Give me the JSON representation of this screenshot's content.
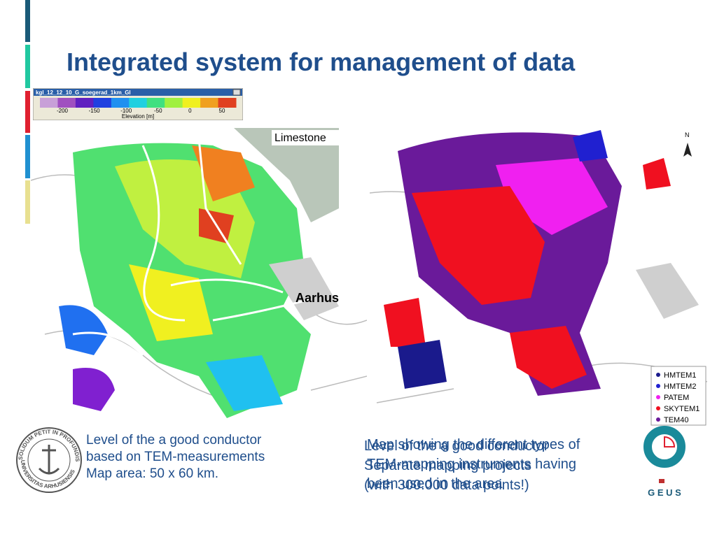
{
  "title": "Integrated system for management of data",
  "colorbar": {
    "window_title": "kgl_12_12_10_G_soegerad_1km_GI",
    "ticks": [
      "-200",
      "-150",
      "-100",
      "-50",
      "0",
      "50"
    ],
    "axis_label": "Elevation [m]",
    "colors": [
      "#c8a0d8",
      "#a050c0",
      "#6020c0",
      "#2040e0",
      "#2090f0",
      "#20d0e0",
      "#40e080",
      "#a0f040",
      "#f0f020",
      "#f0a020",
      "#e04020"
    ]
  },
  "left_map": {
    "labels": [
      "Limestone",
      "Aarhus"
    ],
    "caption": [
      "Level of the a good conductor",
      "based on TEM-measurements",
      "Map area: 50 x 60 km."
    ]
  },
  "right_map": {
    "legend": [
      {
        "name": "HMTEM1",
        "color": "#1a1a8c"
      },
      {
        "name": "HMTEM2",
        "color": "#2020d0"
      },
      {
        "name": "PATEM",
        "color": "#f020f0"
      },
      {
        "name": "SKYTEM1",
        "color": "#f01020"
      },
      {
        "name": "TEM40",
        "color": "#6a1a9a"
      }
    ],
    "caption_a": [
      "Map showing the different types of",
      "TEM-mapping instruments having",
      "been used in the area"
    ],
    "caption_b": [
      "Level of the a good conductor",
      "Separate mapping projects",
      "(with 300.000 data points!)"
    ]
  },
  "seal": {
    "top": "SOLIDUM PETIT IN PROFUNDIS",
    "bottom": "UNIVERSITAS ARHUSIENSIS"
  },
  "logo": "G E U S"
}
